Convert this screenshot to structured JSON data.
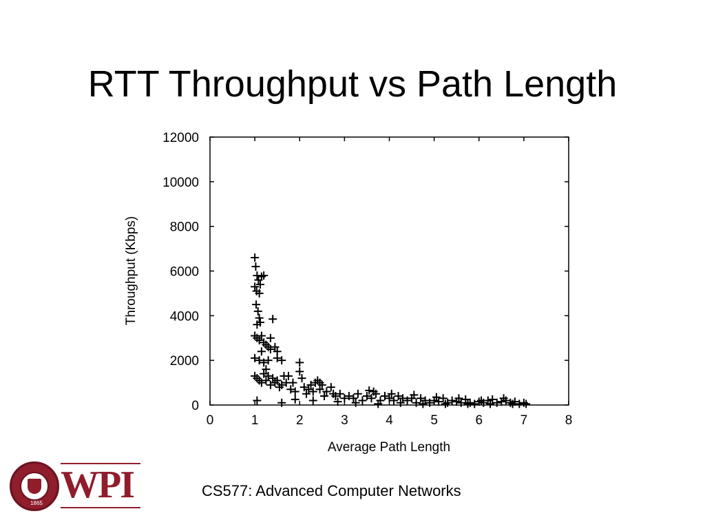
{
  "slide": {
    "title": "RTT Throughput vs Path Length",
    "footer": "CS577: Advanced Computer Networks",
    "logo": {
      "text": "WPI",
      "seal_year": "1865",
      "seal_name": "Worcester Polytechnic Institute",
      "brand_color": "#8f1d2c"
    }
  },
  "chart_data": {
    "type": "scatter",
    "marker": "plus",
    "xlabel": "Average Path Length",
    "ylabel": "Throughput (Kbps)",
    "xlim": [
      0,
      8
    ],
    "ylim": [
      0,
      12000
    ],
    "xticks": [
      0,
      1,
      2,
      3,
      4,
      5,
      6,
      7,
      8
    ],
    "yticks": [
      0,
      2000,
      4000,
      6000,
      8000,
      10000,
      12000
    ],
    "grid": false,
    "series": [
      {
        "points": [
          [
            1.0,
            6600
          ],
          [
            1.02,
            6200
          ],
          [
            1.05,
            5800
          ],
          [
            1.08,
            5600
          ],
          [
            1.12,
            5400
          ],
          [
            1.0,
            5300
          ],
          [
            1.04,
            5100
          ],
          [
            1.1,
            5000
          ],
          [
            1.15,
            5750
          ],
          [
            1.2,
            5800
          ],
          [
            1.03,
            4500
          ],
          [
            1.07,
            4200
          ],
          [
            1.1,
            3900
          ],
          [
            1.05,
            3600
          ],
          [
            1.12,
            3700
          ],
          [
            1.4,
            3850
          ],
          [
            1.0,
            3100
          ],
          [
            1.05,
            3000
          ],
          [
            1.1,
            2900
          ],
          [
            1.15,
            3100
          ],
          [
            1.2,
            2800
          ],
          [
            1.25,
            2700
          ],
          [
            1.3,
            2600
          ],
          [
            1.35,
            2500
          ],
          [
            1.45,
            2600
          ],
          [
            1.5,
            2400
          ],
          [
            1.0,
            2100
          ],
          [
            1.1,
            2000
          ],
          [
            1.2,
            1900
          ],
          [
            1.3,
            2000
          ],
          [
            1.6,
            2000
          ],
          [
            1.5,
            2100
          ],
          [
            1.0,
            1300
          ],
          [
            1.05,
            1200
          ],
          [
            1.1,
            1100
          ],
          [
            1.15,
            1000
          ],
          [
            1.2,
            1400
          ],
          [
            1.25,
            1100
          ],
          [
            1.3,
            1300
          ],
          [
            1.35,
            900
          ],
          [
            1.4,
            1200
          ],
          [
            1.45,
            1000
          ],
          [
            1.5,
            1100
          ],
          [
            1.55,
            800
          ],
          [
            1.6,
            900
          ],
          [
            1.7,
            1000
          ],
          [
            1.75,
            1300
          ],
          [
            1.8,
            700
          ],
          [
            1.85,
            1000
          ],
          [
            1.9,
            600
          ],
          [
            2.0,
            1500
          ],
          [
            2.0,
            1900
          ],
          [
            2.05,
            1200
          ],
          [
            2.1,
            800
          ],
          [
            2.15,
            500
          ],
          [
            2.2,
            700
          ],
          [
            2.25,
            900
          ],
          [
            2.3,
            600
          ],
          [
            2.35,
            1000
          ],
          [
            2.4,
            1100
          ],
          [
            2.45,
            700
          ],
          [
            2.5,
            900
          ],
          [
            2.55,
            400
          ],
          [
            2.6,
            600
          ],
          [
            2.7,
            800
          ],
          [
            2.75,
            500
          ],
          [
            2.8,
            400
          ],
          [
            2.9,
            500
          ],
          [
            3.0,
            300
          ],
          [
            3.1,
            400
          ],
          [
            3.2,
            300
          ],
          [
            3.3,
            500
          ],
          [
            3.4,
            200
          ],
          [
            3.5,
            400
          ],
          [
            3.6,
            300
          ],
          [
            3.65,
            600
          ],
          [
            3.7,
            500
          ],
          [
            3.8,
            200
          ],
          [
            3.9,
            400
          ],
          [
            4.0,
            300
          ],
          [
            4.1,
            200
          ],
          [
            4.2,
            400
          ],
          [
            4.3,
            300
          ],
          [
            4.4,
            200
          ],
          [
            4.5,
            300
          ],
          [
            4.6,
            100
          ],
          [
            4.7,
            300
          ],
          [
            4.8,
            200
          ],
          [
            4.9,
            100
          ],
          [
            5.0,
            200
          ],
          [
            5.1,
            150
          ],
          [
            5.2,
            300
          ],
          [
            5.3,
            100
          ],
          [
            5.4,
            200
          ],
          [
            5.5,
            150
          ],
          [
            5.6,
            100
          ],
          [
            5.7,
            250
          ],
          [
            5.8,
            100
          ],
          [
            5.9,
            50
          ],
          [
            6.0,
            150
          ],
          [
            6.1,
            100
          ],
          [
            6.2,
            200
          ],
          [
            6.3,
            250
          ],
          [
            6.4,
            100
          ],
          [
            6.5,
            150
          ],
          [
            6.6,
            200
          ],
          [
            6.7,
            100
          ],
          [
            6.8,
            150
          ],
          [
            6.9,
            50
          ],
          [
            7.0,
            100
          ],
          [
            7.05,
            50
          ],
          [
            1.05,
            200
          ],
          [
            1.6,
            100
          ],
          [
            1.9,
            250
          ],
          [
            2.3,
            200
          ],
          [
            2.85,
            150
          ],
          [
            3.25,
            100
          ],
          [
            3.75,
            50
          ],
          [
            4.25,
            100
          ],
          [
            4.75,
            50
          ],
          [
            5.25,
            50
          ],
          [
            5.75,
            50
          ],
          [
            6.25,
            50
          ],
          [
            6.75,
            50
          ],
          [
            3.55,
            650
          ],
          [
            4.05,
            500
          ],
          [
            4.55,
            450
          ],
          [
            5.05,
            350
          ],
          [
            5.55,
            300
          ],
          [
            6.05,
            200
          ],
          [
            6.55,
            300
          ],
          [
            2.45,
            1000
          ],
          [
            1.65,
            1300
          ],
          [
            1.25,
            1600
          ],
          [
            1.15,
            2400
          ],
          [
            1.35,
            3000
          ]
        ]
      }
    ]
  }
}
